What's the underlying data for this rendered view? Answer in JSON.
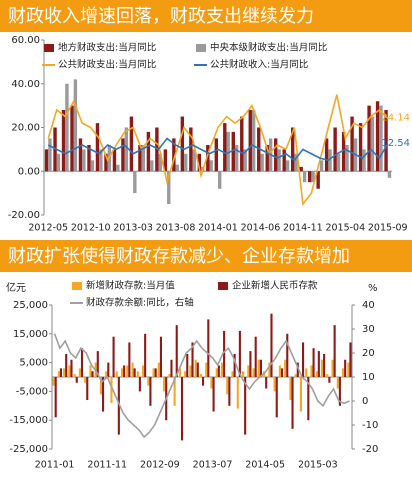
{
  "chart_data": [
    {
      "type": "bar",
      "title": "财政收入增速回落，财政支出继续发力",
      "categories": [
        "2012-05",
        null,
        null,
        null,
        null,
        "2012-10",
        null,
        null,
        null,
        null,
        "2013-03",
        null,
        null,
        null,
        null,
        "2013-08",
        null,
        null,
        null,
        null,
        "2014-01",
        null,
        null,
        null,
        null,
        "2014-06",
        null,
        null,
        null,
        null,
        "2014-11",
        null,
        null,
        null,
        null,
        "2015-04",
        null,
        null,
        null,
        null,
        "2015-09"
      ],
      "ylim": [
        -20,
        60
      ],
      "yticks": [
        {
          "value": -20,
          "label": "-20.00"
        },
        {
          "value": 0,
          "label": "0.00"
        },
        {
          "value": 20,
          "label": "20.00"
        },
        {
          "value": 40,
          "label": "40.00"
        },
        {
          "value": 60,
          "label": "60.00"
        }
      ],
      "series": [
        {
          "name": "地方财政支出:当月同比",
          "type": "bar",
          "color": "#8b1a1a",
          "values": [
            10,
            20,
            28,
            30,
            15,
            12,
            22,
            8,
            10,
            15,
            25,
            12,
            18,
            20,
            10,
            15,
            25,
            20,
            8,
            12,
            15,
            22,
            18,
            25,
            28,
            20,
            12,
            15,
            10,
            20,
            2,
            -5,
            -8,
            15,
            20,
            18,
            25,
            22,
            30,
            32,
            28
          ]
        },
        {
          "name": "中央本级财政支出:当月同比",
          "type": "bar",
          "color": "#9a9a9a",
          "values": [
            15,
            8,
            40,
            42,
            10,
            5,
            10,
            12,
            3,
            20,
            -10,
            12,
            5,
            8,
            -15,
            3,
            8,
            10,
            2,
            5,
            -8,
            18,
            12,
            10,
            28,
            8,
            15,
            10,
            5,
            8,
            -5,
            -5,
            5,
            10,
            8,
            12,
            15,
            10,
            25,
            30,
            -3
          ]
        },
        {
          "name": "公共财政支出:当月同比",
          "type": "line",
          "color": "#f5a623",
          "values": [
            15,
            28,
            25,
            32,
            22,
            20,
            15,
            5,
            12,
            18,
            20,
            10,
            15,
            12,
            -5,
            8,
            20,
            15,
            -2,
            10,
            20,
            25,
            22,
            25,
            30,
            20,
            8,
            12,
            10,
            20,
            -15,
            -10,
            5,
            20,
            35,
            15,
            22,
            20,
            25,
            28,
            24.14
          ],
          "value_labels": [
            null,
            null,
            null,
            null,
            null,
            null,
            null,
            null,
            null,
            null,
            null,
            null,
            null,
            null,
            null,
            null,
            null,
            null,
            null,
            null,
            null,
            null,
            null,
            null,
            null,
            null,
            null,
            null,
            null,
            null,
            null,
            null,
            null,
            null,
            null,
            null,
            null,
            null,
            null,
            null,
            "24.14"
          ]
        },
        {
          "name": "公共财政收入:当月同比",
          "type": "line",
          "color": "#2e75b6",
          "values": [
            12,
            10,
            8,
            10,
            12,
            10,
            8,
            12,
            10,
            12,
            8,
            10,
            12,
            10,
            15,
            12,
            10,
            12,
            10,
            8,
            10,
            8,
            10,
            8,
            12,
            10,
            8,
            6,
            8,
            5,
            10,
            8,
            6,
            5,
            8,
            10,
            8,
            6,
            10,
            6,
            12.54
          ],
          "value_labels": [
            null,
            null,
            null,
            null,
            null,
            null,
            null,
            null,
            null,
            null,
            null,
            null,
            null,
            null,
            null,
            null,
            null,
            null,
            null,
            null,
            null,
            null,
            null,
            null,
            null,
            null,
            null,
            null,
            null,
            null,
            null,
            null,
            null,
            null,
            null,
            null,
            null,
            null,
            null,
            null,
            "12.54"
          ]
        }
      ]
    },
    {
      "type": "bar",
      "title": "财政扩张使得财政存款减少、企业存款增加",
      "y_label": "亿元",
      "y2_label": "%",
      "categories": [
        "2011-01",
        null,
        null,
        null,
        null,
        null,
        null,
        null,
        null,
        null,
        "2011-11",
        null,
        null,
        null,
        null,
        null,
        null,
        null,
        null,
        null,
        "2012-09",
        null,
        null,
        null,
        null,
        null,
        null,
        null,
        null,
        null,
        "2013-07",
        null,
        null,
        null,
        null,
        null,
        null,
        null,
        null,
        null,
        "2014-05",
        null,
        null,
        null,
        null,
        null,
        null,
        null,
        null,
        null,
        "2015-03",
        null,
        null,
        null,
        null,
        null,
        null
      ],
      "ylim": [
        -25000,
        25000
      ],
      "yticks": [
        {
          "value": -25000,
          "label": "-25,000"
        },
        {
          "value": -15000,
          "label": "-15,000"
        },
        {
          "value": -5000,
          "label": "-5,000"
        },
        {
          "value": 5000,
          "label": "5,000"
        },
        {
          "value": 15000,
          "label": "15,000"
        },
        {
          "value": 25000,
          "label": "25,000"
        }
      ],
      "y2lim": [
        -20,
        40
      ],
      "y2ticks": [
        -20,
        -10,
        0,
        10,
        20,
        30,
        40
      ],
      "series": [
        {
          "name": "新增财政存款:当月值",
          "type": "bar",
          "color": "#f5a623",
          "values": [
            -3000,
            2000,
            3000,
            4000,
            1000,
            3000,
            -2000,
            4000,
            5000,
            -6000,
            2000,
            -9000,
            2000,
            3000,
            4000,
            5000,
            2000,
            4000,
            -3000,
            3000,
            5000,
            -5000,
            1000,
            -10000,
            3000,
            2000,
            4000,
            6000,
            1000,
            5000,
            -4000,
            3000,
            5000,
            -6000,
            2000,
            -11000,
            2000,
            4000,
            3000,
            6000,
            2000,
            5000,
            -5000,
            4000,
            6000,
            -8000,
            1000,
            -12000,
            3000,
            4000,
            2000,
            6000,
            1000,
            6000,
            -4000,
            3000,
            5000
          ]
        },
        {
          "name": "企业新增人民币存款",
          "type": "bar",
          "color": "#8b1a1a",
          "values": [
            -14000,
            3000,
            8000,
            6000,
            -2000,
            10000,
            -8000,
            2000,
            9000,
            -12000,
            5000,
            14000,
            -20000,
            4000,
            12000,
            3000,
            -5000,
            15000,
            -10000,
            3000,
            14000,
            -15000,
            6000,
            18000,
            -22000,
            8000,
            12000,
            5000,
            -3000,
            20000,
            -12000,
            4000,
            16000,
            -10000,
            8000,
            16000,
            -20000,
            9000,
            14000,
            6000,
            -4000,
            22000,
            -14000,
            3000,
            15000,
            -18000,
            5000,
            12000,
            -15000,
            10000,
            9000,
            8000,
            -2000,
            18000,
            -10000,
            6000,
            12000
          ]
        },
        {
          "name": "财政存款余额:同比，右轴",
          "type": "line",
          "axis": "y2",
          "color": "#a0a0a0",
          "values": [
            28,
            22,
            25,
            20,
            18,
            22,
            20,
            15,
            12,
            8,
            10,
            5,
            0,
            -5,
            -8,
            -10,
            -12,
            -15,
            -13,
            -10,
            -5,
            0,
            5,
            10,
            15,
            20,
            22,
            25,
            22,
            20,
            18,
            15,
            20,
            22,
            18,
            12,
            8,
            5,
            8,
            10,
            12,
            15,
            18,
            22,
            25,
            20,
            15,
            10,
            8,
            5,
            0,
            -2,
            2,
            5,
            0,
            -1,
            0
          ]
        }
      ]
    }
  ]
}
